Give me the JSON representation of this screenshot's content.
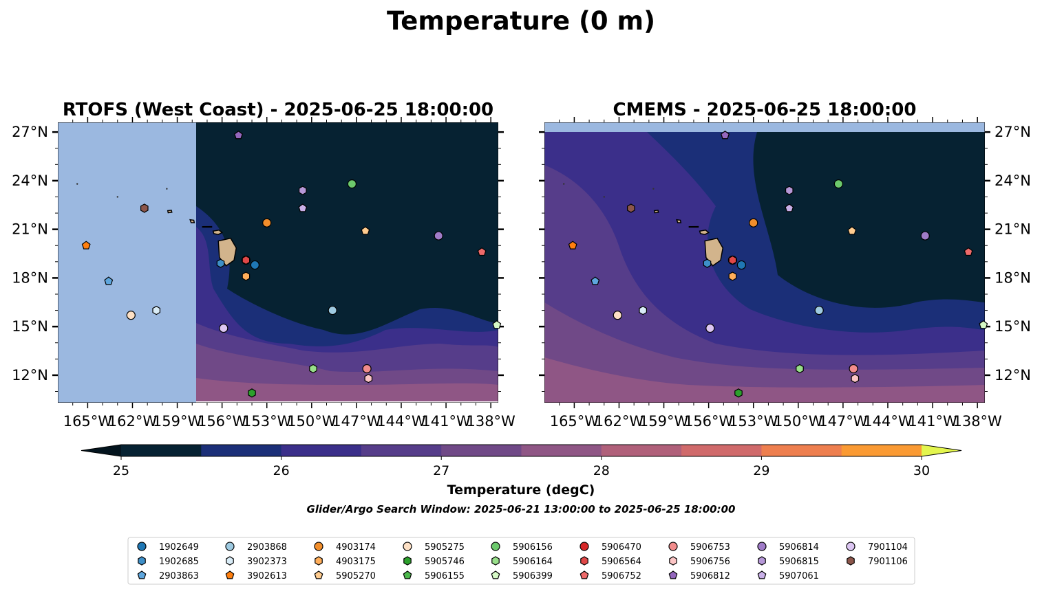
{
  "figure_title": "Temperature (0 m)",
  "panels": {
    "left_title": "RTOFS (West Coast) - 2025-06-25 18:00:00",
    "right_title": "CMEMS - 2025-06-25 18:00:00"
  },
  "colorbar": {
    "label": "Temperature (degC)",
    "min": 25,
    "max": 30,
    "step": 0.5,
    "ticks": [
      "25",
      "26",
      "27",
      "28",
      "29",
      "30"
    ],
    "colors": [
      "#062232",
      "#1b2f78",
      "#3b2f8a",
      "#563d8a",
      "#704987",
      "#8f5685",
      "#b0607a",
      "#d06a6b",
      "#ee7f4f",
      "#fa9a33",
      "#fbc73b"
    ],
    "under_color": "#03141e",
    "over_color": "#e3f54e"
  },
  "search_window": "Glider/Argo Search Window: 2025-06-21 13:00:00 to 2025-06-25 18:00:00",
  "map": {
    "lon_range": [
      -167,
      -137.5
    ],
    "lat_range": [
      10.3,
      27.6
    ],
    "lon_ticks": [
      "165°W",
      "162°W",
      "159°W",
      "156°W",
      "153°W",
      "150°W",
      "147°W",
      "144°W",
      "141°W",
      "138°W"
    ],
    "lat_ticks": [
      "27°N",
      "24°N",
      "21°N",
      "18°N",
      "15°N",
      "12°N"
    ],
    "land_color": "#d2b48c",
    "nodata_color": "#9bb8e0"
  },
  "chart_data": {
    "type": "scatter",
    "title": "Temperature (0 m)",
    "series": [
      {
        "name": "1902649",
        "lon": -153.8,
        "lat": 18.8,
        "marker": "circle",
        "color": "#1f77b4"
      },
      {
        "name": "1902685",
        "lon": -156.1,
        "lat": 18.9,
        "marker": "hexagon",
        "color": "#3e8fc8"
      },
      {
        "name": "2903863",
        "lon": -163.6,
        "lat": 17.8,
        "marker": "pentagon",
        "color": "#5ea6dd"
      },
      {
        "name": "2903868",
        "lon": -148.6,
        "lat": 16.0,
        "marker": "circle",
        "color": "#9ecae1"
      },
      {
        "name": "3902373",
        "lon": -160.4,
        "lat": 16.0,
        "marker": "hexagon",
        "color": "#d9ecf7"
      },
      {
        "name": "3902613",
        "lon": -165.1,
        "lat": 20.0,
        "marker": "pentagon",
        "color": "#ff7f0e"
      },
      {
        "name": "4903174",
        "lon": -153.0,
        "lat": 21.4,
        "marker": "circle",
        "color": "#f28e2b"
      },
      {
        "name": "4903175",
        "lon": -154.4,
        "lat": 18.1,
        "marker": "hexagon",
        "color": "#ffae5a"
      },
      {
        "name": "5905270",
        "lon": -146.4,
        "lat": 20.9,
        "marker": "pentagon",
        "color": "#ffcc8f"
      },
      {
        "name": "5905275",
        "lon": -162.1,
        "lat": 15.7,
        "marker": "circle",
        "color": "#fde0c5"
      },
      {
        "name": "5905746",
        "lon": -154.0,
        "lat": 10.9,
        "marker": "hexagon",
        "color": "#2ca02c"
      },
      {
        "name": "5906155",
        "lon": -154.9,
        "lat": 26.8,
        "marker": "pentagon",
        "color": "#4cb84c"
      },
      {
        "name": "5906156",
        "lon": -147.3,
        "lat": 23.8,
        "marker": "circle",
        "color": "#6cc96c"
      },
      {
        "name": "5906164",
        "lon": -149.9,
        "lat": 12.4,
        "marker": "hexagon",
        "color": "#98df8a"
      },
      {
        "name": "5906399",
        "lon": -137.6,
        "lat": 15.1,
        "marker": "pentagon",
        "color": "#d6f9c6"
      },
      {
        "name": "5906470",
        "lon": -154.4,
        "lat": 19.1,
        "marker": "circle",
        "color": "#d62728"
      },
      {
        "name": "5906564",
        "lon": -154.4,
        "lat": 19.1,
        "marker": "hexagon",
        "color": "#e04848"
      },
      {
        "name": "5906752",
        "lon": -138.6,
        "lat": 19.6,
        "marker": "pentagon",
        "color": "#ee6a6a"
      },
      {
        "name": "5906753",
        "lon": -146.3,
        "lat": 12.4,
        "marker": "circle",
        "color": "#f28c8c"
      },
      {
        "name": "5906756",
        "lon": -146.2,
        "lat": 11.8,
        "marker": "hexagon",
        "color": "#fcc5c5"
      },
      {
        "name": "5906812",
        "lon": -154.9,
        "lat": 26.8,
        "marker": "pentagon",
        "color": "#9467bd"
      },
      {
        "name": "5906814",
        "lon": -141.5,
        "lat": 20.6,
        "marker": "circle",
        "color": "#a07cc8"
      },
      {
        "name": "5906815",
        "lon": -150.6,
        "lat": 23.4,
        "marker": "hexagon",
        "color": "#b698d8"
      },
      {
        "name": "5907061",
        "lon": -150.6,
        "lat": 22.3,
        "marker": "pentagon",
        "color": "#c9b0e8"
      },
      {
        "name": "7901104",
        "lon": -155.9,
        "lat": 14.9,
        "marker": "circle",
        "color": "#dcc6f2"
      },
      {
        "name": "7901106",
        "lon": -161.2,
        "lat": 22.3,
        "marker": "hexagon",
        "color": "#8c564b"
      }
    ]
  }
}
